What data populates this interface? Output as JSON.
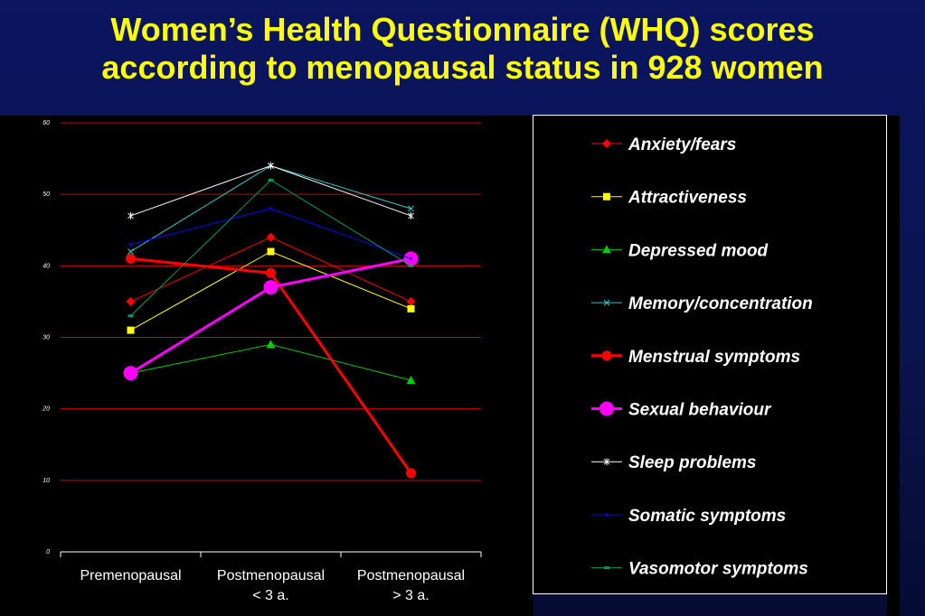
{
  "title": {
    "line1": "Women’s Health Questionnaire (WHQ) scores",
    "line2": "according to menopausal status in 928 women"
  },
  "chart_data": {
    "type": "line",
    "categories": [
      [
        "Premenopausal"
      ],
      [
        "Postmenopausal",
        "< 3 a."
      ],
      [
        "Postmenopausal",
        "> 3 a."
      ]
    ],
    "ylim": [
      0,
      60
    ],
    "yticks": [
      0,
      10,
      20,
      30,
      40,
      50,
      60
    ],
    "grid": true,
    "grid_color": "#cc0000",
    "legend_position": "right",
    "series": [
      {
        "name": "Anxiety/fears",
        "values": [
          35,
          44,
          35
        ],
        "color": "#ff0000",
        "marker": "diamond",
        "width": 1
      },
      {
        "name": "Attractiveness",
        "values": [
          31,
          42,
          34
        ],
        "color": "#ffff00",
        "marker": "square",
        "width": 1
      },
      {
        "name": "Depressed mood",
        "values": [
          25,
          29,
          24
        ],
        "color": "#00cc00",
        "marker": "triangle",
        "width": 1
      },
      {
        "name": "Memory/concentration",
        "values": [
          42,
          54,
          48
        ],
        "color": "#33cccc",
        "marker": "x",
        "width": 1
      },
      {
        "name": "Menstrual symptoms",
        "values": [
          41,
          39,
          11
        ],
        "color": "#ff0000",
        "marker": "circle",
        "width": 3
      },
      {
        "name": "Sexual behaviour",
        "values": [
          25,
          37,
          41
        ],
        "color": "#ff00ff",
        "marker": "bigcircle",
        "width": 3
      },
      {
        "name": "Sleep problems",
        "values": [
          47,
          54,
          47
        ],
        "color": "#ffffff",
        "marker": "star",
        "width": 1
      },
      {
        "name": "Somatic symptoms",
        "values": [
          43,
          48,
          41
        ],
        "color": "#0000ff",
        "marker": "dot",
        "width": 1
      },
      {
        "name": "Vasomotor symptoms",
        "values": [
          33,
          52,
          40
        ],
        "color": "#009966",
        "marker": "dash",
        "width": 1
      }
    ]
  }
}
